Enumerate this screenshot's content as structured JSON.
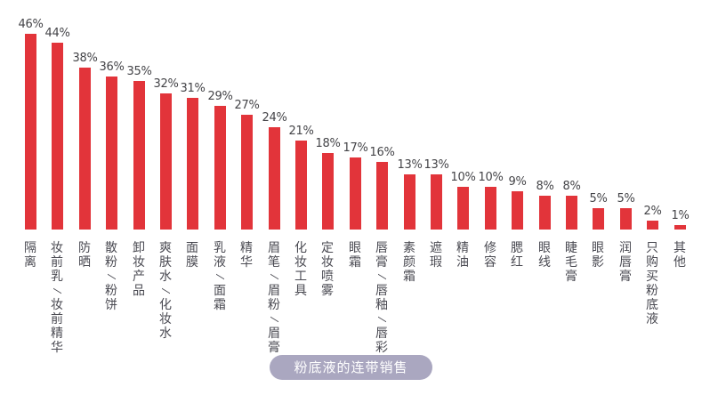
{
  "chart_data": {
    "type": "bar",
    "title": "粉底液的连带销售",
    "xlabel": "",
    "ylabel": "",
    "ylim": [
      0,
      50
    ],
    "grid": false,
    "legend": null,
    "value_format": "percent",
    "categories": [
      "隔离",
      "妆前乳/妆前精华",
      "防晒",
      "散粉/粉饼",
      "卸妆产品",
      "爽肤水/化妆水",
      "面膜",
      "乳液/面霜",
      "精华",
      "眉笔/眉粉/眉膏",
      "化妆工具",
      "定妆喷雾",
      "眼霜",
      "唇膏/唇釉/唇彩",
      "素颜霜",
      "遮瑕",
      "精油",
      "修容",
      "腮红",
      "眼线",
      "睫毛膏",
      "眼影",
      "润唇膏",
      "只购买粉底液",
      "其他"
    ],
    "values": [
      46,
      44,
      38,
      36,
      35,
      32,
      31,
      29,
      27,
      24,
      21,
      18,
      17,
      16,
      13,
      13,
      10,
      10,
      9,
      8,
      8,
      5,
      5,
      2,
      1
    ],
    "labels": [
      "46%",
      "44%",
      "38%",
      "36%",
      "35%",
      "32%",
      "31%",
      "29%",
      "27%",
      "24%",
      "21%",
      "18%",
      "17%",
      "16%",
      "13%",
      "13%",
      "10%",
      "10%",
      "9%",
      "8%",
      "8%",
      "5%",
      "5%",
      "2%",
      "1%"
    ],
    "bar_color": "#e2343a"
  },
  "caption": {
    "text": "粉底液的连带销售",
    "background": "#aaa7c0"
  }
}
